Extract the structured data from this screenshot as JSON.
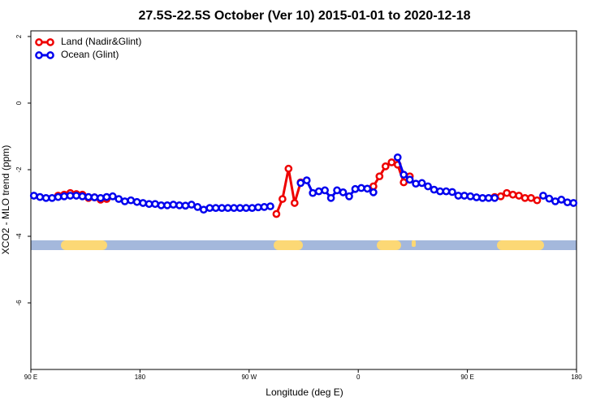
{
  "chart_data": {
    "type": "line",
    "title": "27.5S-22.5S October (Ver 10)   2015-01-01 to 2020-12-18",
    "xlabel": "Longitude (deg E)",
    "ylabel": "XCO2 - MLO trend (ppm)",
    "x": [
      92.5,
      97.5,
      102.5,
      107.5,
      112.5,
      117.5,
      122.5,
      127.5,
      132.5,
      137.5,
      142.5,
      147.5,
      152.5,
      157.5,
      162.5,
      167.5,
      172.5,
      177.5,
      182.5,
      187.5,
      192.5,
      197.5,
      202.5,
      207.5,
      212.5,
      217.5,
      222.5,
      227.5,
      232.5,
      237.5,
      242.5,
      247.5,
      252.5,
      257.5,
      262.5,
      267.5,
      272.5,
      277.5,
      282.5,
      287.5,
      292.5,
      297.5,
      302.5,
      307.5,
      312.5,
      317.5,
      322.5,
      327.5,
      332.5,
      337.5,
      342.5,
      347.5,
      352.5,
      357.5,
      362.5,
      367.5,
      372.5,
      377.5,
      382.5,
      387.5,
      392.5,
      397.5,
      402.5,
      407.5,
      412.5,
      417.5,
      422.5,
      427.5,
      432.5,
      437.5,
      442.5,
      447.5,
      452.5,
      457.5,
      462.5,
      467.5,
      472.5,
      477.5,
      482.5,
      487.5,
      492.5,
      497.5,
      502.5,
      507.5,
      512.5,
      517.5,
      522.5,
      527.5,
      532.5,
      537.5
    ],
    "series": [
      {
        "name": "Land (Nadir&Glint)",
        "color": "#ee0000",
        "values": [
          null,
          null,
          null,
          null,
          -2.78,
          -2.75,
          -2.7,
          -2.73,
          -2.75,
          -2.85,
          -2.83,
          -2.9,
          -2.88,
          null,
          null,
          null,
          null,
          null,
          null,
          null,
          null,
          null,
          null,
          null,
          null,
          null,
          null,
          null,
          null,
          null,
          null,
          null,
          null,
          null,
          null,
          null,
          null,
          null,
          null,
          null,
          -3.33,
          -2.88,
          -1.97,
          -3.0,
          -2.38,
          null,
          null,
          null,
          null,
          null,
          null,
          null,
          null,
          null,
          null,
          null,
          -2.5,
          -2.2,
          -1.9,
          -1.78,
          -1.85,
          -2.38,
          -2.2,
          null,
          null,
          null,
          null,
          null,
          null,
          null,
          null,
          null,
          null,
          null,
          null,
          null,
          -2.82,
          -2.8,
          -2.7,
          -2.75,
          -2.78,
          -2.85,
          -2.85,
          -2.92,
          null,
          null,
          null,
          null,
          null,
          null
        ]
      },
      {
        "name": "Ocean (Glint)",
        "color": "#0000ee",
        "values": [
          -2.78,
          -2.82,
          -2.85,
          -2.85,
          -2.82,
          -2.8,
          -2.78,
          -2.78,
          -2.8,
          -2.82,
          -2.83,
          -2.85,
          -2.82,
          -2.8,
          -2.88,
          -2.95,
          -2.92,
          -2.97,
          -3.0,
          -3.03,
          -3.03,
          -3.07,
          -3.07,
          -3.05,
          -3.07,
          -3.08,
          -3.05,
          -3.12,
          -3.2,
          -3.15,
          -3.15,
          -3.15,
          -3.15,
          -3.15,
          -3.15,
          -3.15,
          -3.15,
          -3.13,
          -3.12,
          -3.1,
          null,
          null,
          null,
          null,
          -2.4,
          -2.32,
          -2.7,
          -2.65,
          -2.62,
          -2.85,
          -2.62,
          -2.68,
          -2.8,
          -2.58,
          -2.55,
          -2.57,
          -2.68,
          null,
          null,
          null,
          -1.63,
          -2.15,
          -2.3,
          -2.42,
          -2.4,
          -2.5,
          -2.6,
          -2.65,
          -2.65,
          -2.67,
          -2.78,
          -2.78,
          -2.8,
          -2.83,
          -2.85,
          -2.85,
          -2.85,
          null,
          null,
          null,
          null,
          null,
          null,
          null,
          -2.78,
          -2.87,
          -2.95,
          -2.9,
          -2.98,
          -3.0
        ]
      }
    ],
    "xlim": [
      90,
      540
    ],
    "xticks": [
      {
        "value": 90,
        "label": "90 E"
      },
      180,
      {
        "value": 270,
        "label": "90 W"
      },
      {
        "value": 360,
        "label": "0"
      },
      {
        "value": 450,
        "label": "90 E"
      },
      {
        "value": 540,
        "label": "180"
      }
    ],
    "ylim": [
      -8,
      2.17
    ],
    "yticks": [
      -6,
      -4,
      -2,
      0,
      2
    ],
    "legend": "upper left"
  }
}
